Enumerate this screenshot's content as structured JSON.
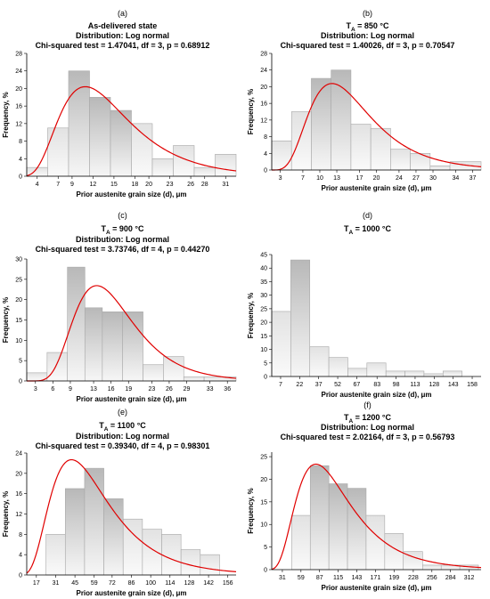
{
  "chart_data": [
    {
      "type": "bar",
      "panel_label": "(a)",
      "title_lines": [
        "As-delivered state",
        "Distribution: Log normal",
        "Chi-squared test = 1.47041, df = 3, p = 0.68912"
      ],
      "xlabel": "Prior austenite grain size (d), μm",
      "ylabel": "Frequency, %",
      "xlim": [
        2.5,
        32.5
      ],
      "ylim": [
        0,
        28
      ],
      "yticks": [
        0,
        4,
        8,
        12,
        16,
        20,
        24,
        28
      ],
      "xticks": [
        4,
        7,
        9,
        12,
        15,
        18,
        20,
        23,
        26,
        28,
        31
      ],
      "bin_edges": [
        2.5,
        5.5,
        8.5,
        11.5,
        14.5,
        17.5,
        20.5,
        23.5,
        26.5,
        29.5,
        32.5
      ],
      "values": [
        2,
        11,
        24,
        18,
        15,
        12,
        4,
        7,
        2,
        5
      ],
      "fit": {
        "distribution": "Log normal",
        "mu": 2.6,
        "sigma": 0.46,
        "scale": 285,
        "color": "#e00000"
      }
    },
    {
      "type": "bar",
      "panel_label": "(b)",
      "title_lines": [
        "T_A = 850 °C",
        "Distribution: Log normal",
        "Chi-squared test = 1.40026, df = 3, p = 0.70547"
      ],
      "xlabel": "Prior austenite grain size (d), μm",
      "ylabel": "Frequency, %",
      "xlim": [
        1.5,
        38.5
      ],
      "ylim": [
        0,
        28
      ],
      "yticks": [
        0,
        4,
        8,
        12,
        16,
        20,
        24,
        28
      ],
      "xticks": [
        3,
        7,
        10,
        13,
        17,
        20,
        24,
        27,
        30,
        34,
        37
      ],
      "bin_edges": [
        1.5,
        5,
        8.5,
        12,
        15.5,
        19,
        22.5,
        26,
        29.5,
        33,
        38.5
      ],
      "values": [
        7,
        14,
        22,
        24,
        11,
        10,
        5,
        4,
        1,
        2
      ],
      "fit": {
        "distribution": "Log normal",
        "mu": 2.7,
        "sigma": 0.45,
        "scale": 315,
        "color": "#e00000"
      }
    },
    {
      "type": "bar",
      "panel_label": "(c)",
      "title_lines": [
        "T_A = 900 °C",
        "Distribution: Log normal",
        "Chi-squared test = 3.73746, df = 4, p = 0.44270"
      ],
      "xlabel": "Prior austenite grain size (d), μm",
      "ylabel": "Frequency, %",
      "xlim": [
        1.5,
        37.5
      ],
      "ylim": [
        0,
        30
      ],
      "yticks": [
        0,
        5,
        10,
        15,
        20,
        25,
        30
      ],
      "xticks": [
        3,
        6,
        9,
        13,
        16,
        19,
        23,
        26,
        29,
        33,
        36
      ],
      "bin_edges": [
        1.5,
        5,
        8.5,
        11.5,
        14.5,
        18,
        21.5,
        25,
        28.5,
        32,
        37.5
      ],
      "values": [
        2,
        7,
        28,
        18,
        17,
        17,
        4,
        6,
        1,
        1
      ],
      "fit": {
        "distribution": "Log normal",
        "mu": 2.75,
        "sigma": 0.38,
        "scale": 325,
        "color": "#e00000"
      }
    },
    {
      "type": "bar",
      "panel_label": "(d)",
      "title_lines": [
        "T_A = 1000 °C"
      ],
      "xlabel": "Prior austenite grain size (d), μm",
      "ylabel": "Frequency, %",
      "xlim": [
        0,
        165
      ],
      "ylim": [
        0,
        45
      ],
      "yticks": [
        0,
        5,
        10,
        15,
        20,
        25,
        30,
        35,
        40,
        45
      ],
      "xticks": [
        7,
        22,
        37,
        52,
        67,
        83,
        98,
        113,
        128,
        143,
        158
      ],
      "bin_edges": [
        0,
        15,
        30,
        45,
        60,
        75,
        90,
        105,
        120,
        135,
        150,
        165
      ],
      "values": [
        24,
        43,
        11,
        7,
        3,
        5,
        2,
        2,
        1,
        2,
        0
      ],
      "fit": null
    },
    {
      "type": "bar",
      "panel_label": "(e)",
      "title_lines": [
        "T_A = 1100 °C",
        "Distribution: Log normal",
        "Chi-squared test = 0.39340, df = 4, p = 0.98301"
      ],
      "xlabel": "Prior austenite grain size (d), μm",
      "ylabel": "Frequency, %",
      "xlim": [
        10,
        162
      ],
      "ylim": [
        0,
        24
      ],
      "yticks": [
        0,
        4,
        8,
        12,
        16,
        20,
        24
      ],
      "xticks": [
        17,
        31,
        45,
        59,
        72,
        86,
        100,
        114,
        128,
        142,
        156
      ],
      "bin_edges": [
        24,
        38,
        52,
        66,
        80,
        94,
        108,
        122,
        136,
        150
      ],
      "values": [
        8,
        17,
        21,
        15,
        11,
        9,
        8,
        5,
        4
      ],
      "fit": {
        "distribution": "Log normal",
        "mu": 4.0,
        "sigma": 0.5,
        "scale": 1370,
        "color": "#e00000"
      }
    },
    {
      "type": "bar",
      "panel_label": "(f)",
      "title_lines": [
        "T_A = 1200 °C",
        "Distribution: Log normal",
        "Chi-squared test = 2.02164, df = 3, p = 0.56793"
      ],
      "xlabel": "Prior austenite grain size (d), μm",
      "ylabel": "Frequency, %",
      "xlim": [
        15,
        330
      ],
      "ylim": [
        0,
        26
      ],
      "yticks": [
        0,
        5,
        10,
        15,
        20,
        25
      ],
      "xticks": [
        31,
        59,
        87,
        115,
        143,
        171,
        199,
        228,
        256,
        284,
        312
      ],
      "bin_edges": [
        45,
        73,
        101,
        129,
        157,
        185,
        213,
        242,
        270,
        298,
        326
      ],
      "values": [
        12,
        23,
        19,
        18,
        12,
        8,
        4,
        1,
        1,
        1
      ],
      "fit": {
        "distribution": "Log normal",
        "mu": 4.65,
        "sigma": 0.5,
        "scale": 2700,
        "color": "#e00000"
      }
    }
  ]
}
